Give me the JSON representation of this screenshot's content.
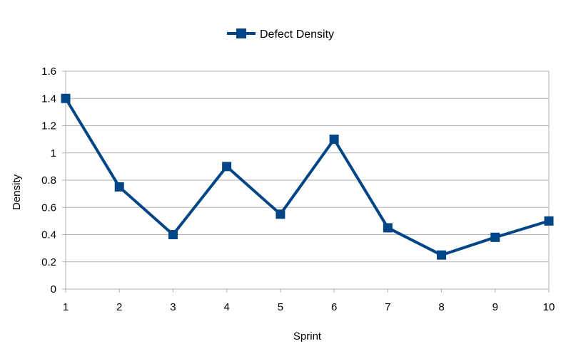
{
  "chart_data": {
    "type": "line",
    "title": "",
    "xlabel": "Sprint",
    "ylabel": "Density",
    "categories": [
      "1",
      "2",
      "3",
      "4",
      "5",
      "6",
      "7",
      "8",
      "9",
      "10"
    ],
    "series": [
      {
        "name": "Defect Density",
        "values": [
          1.4,
          0.75,
          0.4,
          0.9,
          0.55,
          1.1,
          0.45,
          0.25,
          0.38,
          0.5
        ],
        "color": "#004586",
        "marker": "square"
      }
    ],
    "ylim": [
      0,
      1.6
    ],
    "yticks": [
      "0",
      "0.2",
      "0.4",
      "0.6",
      "0.8",
      "1",
      "1.2",
      "1.4",
      "1.6"
    ],
    "grid": true,
    "legend_position": "top-center"
  }
}
